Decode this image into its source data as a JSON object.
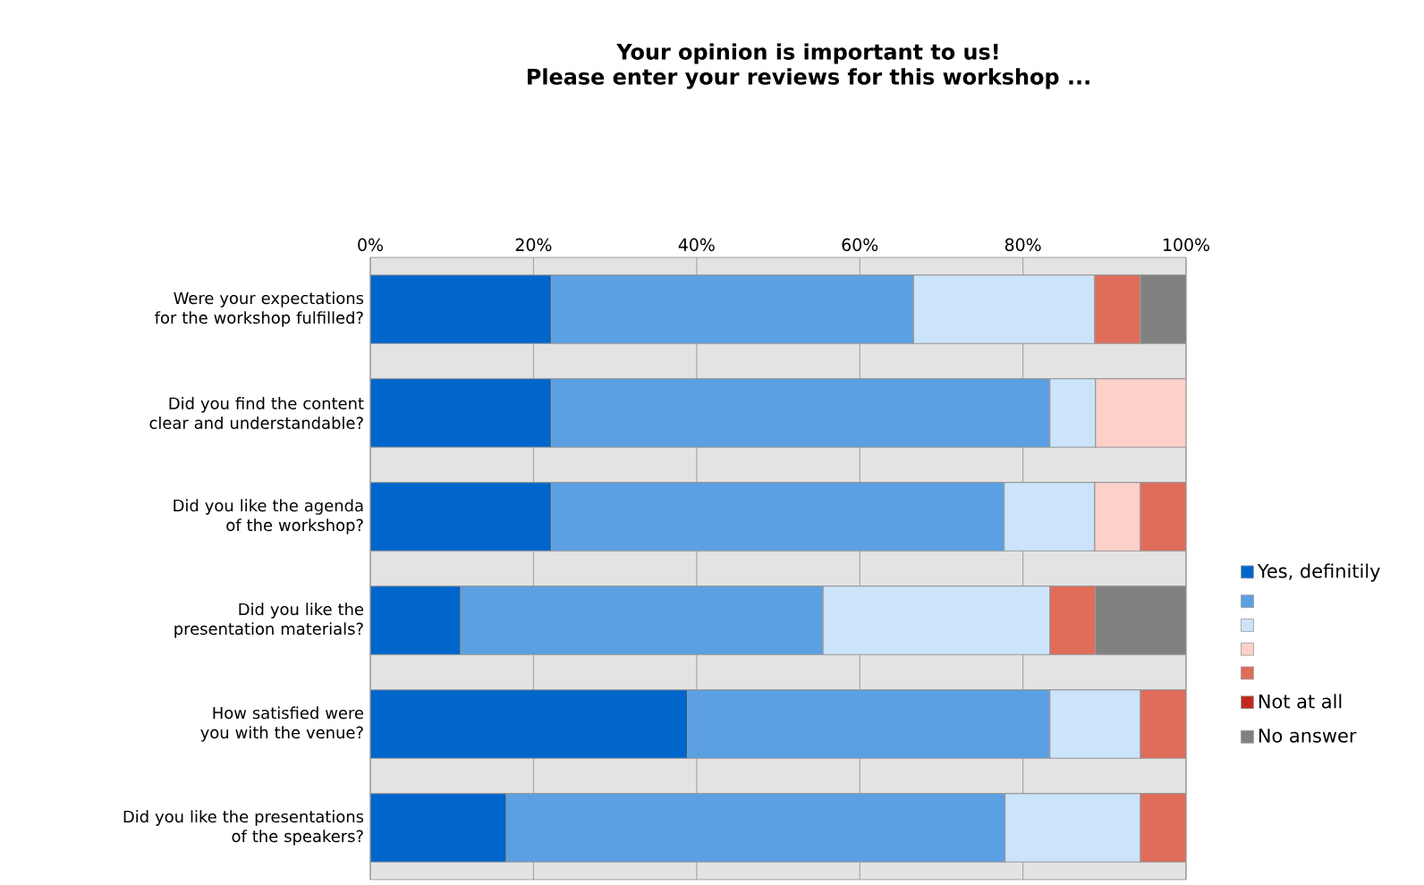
{
  "chart_data": {
    "type": "bar",
    "orientation": "horizontal",
    "stacked": true,
    "title": "Your opinion is important to us!",
    "subtitle": "Please enter your reviews for this workshop ...",
    "categories": [
      "Were your expectations for the workshop fulfilled?",
      "Did you find the content clear and understandable?",
      "Did you like the agenda of the workshop?",
      "Did you like the presentation materials?",
      "How satisfied were you with the venue?",
      "Did you like the presentations of the speakers?"
    ],
    "series": [
      {
        "name": "Yes, definitily",
        "color": "#0066cc",
        "values": [
          22.2,
          22.2,
          22.2,
          11.1,
          38.9,
          16.7
        ]
      },
      {
        "color": "#5ba0e2",
        "values": [
          44.4,
          61.1,
          55.5,
          44.4,
          44.4,
          61.1
        ]
      },
      {
        "color": "#cce4fa",
        "values": [
          22.2,
          5.6,
          11.1,
          27.8,
          11.1,
          16.6
        ]
      },
      {
        "color": "#fdd0ca",
        "values": [
          null,
          11.1,
          5.6,
          null,
          null,
          null
        ]
      },
      {
        "color": "#e06c5a",
        "values": [
          5.6,
          null,
          5.6,
          5.6,
          5.6,
          5.6
        ]
      },
      {
        "name": "Not at all",
        "color": "#c0281c",
        "values": [
          null,
          null,
          null,
          null,
          null,
          null
        ]
      },
      {
        "name": "No answer",
        "color": "#808080",
        "values": [
          5.6,
          null,
          null,
          11.1,
          null,
          null
        ]
      }
    ],
    "xlim": [
      0,
      100
    ],
    "xticks": [
      {
        "value": 0,
        "label": "0%"
      },
      {
        "value": 20,
        "label": "20%"
      },
      {
        "value": 40,
        "label": "40%"
      },
      {
        "value": 60,
        "label": "60%"
      },
      {
        "value": 80,
        "label": "80%"
      },
      {
        "value": 100,
        "label": "100%"
      }
    ],
    "grid": "x",
    "legend": "right"
  }
}
